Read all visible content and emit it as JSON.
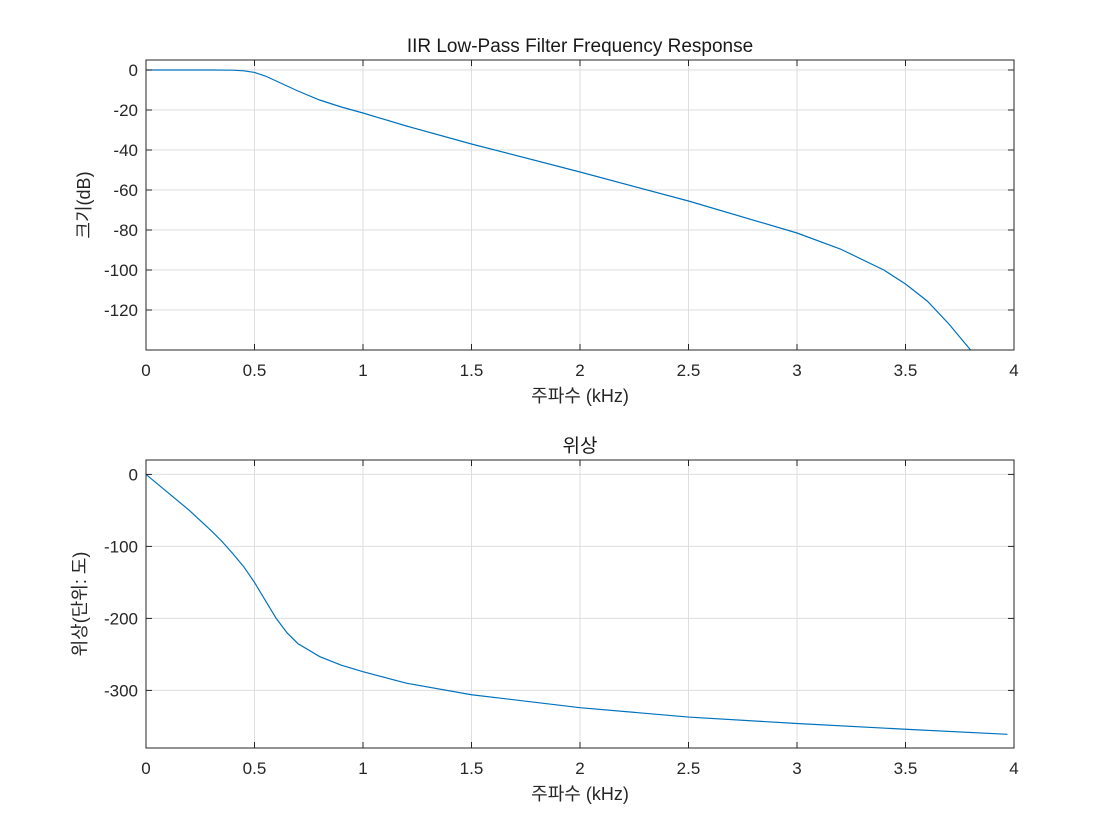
{
  "figure": {
    "background": "#ffffff",
    "series_color": "#0072bd"
  },
  "chart_data": [
    {
      "type": "line",
      "title": "IIR Low-Pass Filter Frequency Response",
      "xlabel": "주파수 (kHz)",
      "ylabel": "크기(dB)",
      "xlim": [
        0,
        4
      ],
      "ylim": [
        -140,
        5
      ],
      "xticks": [
        0,
        0.5,
        1,
        1.5,
        2,
        2.5,
        3,
        3.5,
        4
      ],
      "xtick_labels": [
        "0",
        "0.5",
        "1",
        "1.5",
        "2",
        "2.5",
        "3",
        "3.5",
        "4"
      ],
      "yticks": [
        0,
        -20,
        -40,
        -60,
        -80,
        -100,
        -120
      ],
      "ytick_labels": [
        "0",
        "-20",
        "-40",
        "-60",
        "-80",
        "-100",
        "-120"
      ],
      "grid": true,
      "series": [
        {
          "x": [
            0,
            0.1,
            0.2,
            0.3,
            0.4,
            0.45,
            0.5,
            0.55,
            0.6,
            0.7,
            0.8,
            0.9,
            1.0,
            1.2,
            1.5,
            2.0,
            2.5,
            3.0,
            3.2,
            3.4,
            3.5,
            3.6,
            3.7,
            3.75,
            3.8
          ],
          "y": [
            0,
            0,
            0,
            0,
            -0.1,
            -0.4,
            -1.2,
            -3,
            -5.5,
            -10.5,
            -15,
            -18.5,
            -21.5,
            -28,
            -37,
            -51,
            -65.5,
            -81.5,
            -89.5,
            -100,
            -107,
            -115.5,
            -127,
            -133.5,
            -140
          ]
        }
      ]
    },
    {
      "type": "line",
      "title": "위상",
      "xlabel": "주파수 (kHz)",
      "ylabel": "위상(단위: 도)",
      "xlim": [
        0,
        4
      ],
      "ylim": [
        -380,
        20
      ],
      "xticks": [
        0,
        0.5,
        1,
        1.5,
        2,
        2.5,
        3,
        3.5,
        4
      ],
      "xtick_labels": [
        "0",
        "0.5",
        "1",
        "1.5",
        "2",
        "2.5",
        "3",
        "3.5",
        "4"
      ],
      "yticks": [
        0,
        -100,
        -200,
        -300
      ],
      "ytick_labels": [
        "0",
        "-100",
        "-200",
        "-300"
      ],
      "grid": true,
      "series": [
        {
          "x": [
            0,
            0.1,
            0.2,
            0.3,
            0.35,
            0.4,
            0.45,
            0.5,
            0.55,
            0.6,
            0.65,
            0.7,
            0.8,
            0.9,
            1.0,
            1.2,
            1.5,
            2.0,
            2.5,
            3.0,
            3.5,
            3.97
          ],
          "y": [
            0,
            -25,
            -50,
            -78,
            -93,
            -110,
            -128,
            -150,
            -175,
            -200,
            -220,
            -235,
            -253,
            -265,
            -274,
            -290,
            -306,
            -324,
            -337,
            -346,
            -354,
            -361
          ]
        }
      ]
    }
  ]
}
